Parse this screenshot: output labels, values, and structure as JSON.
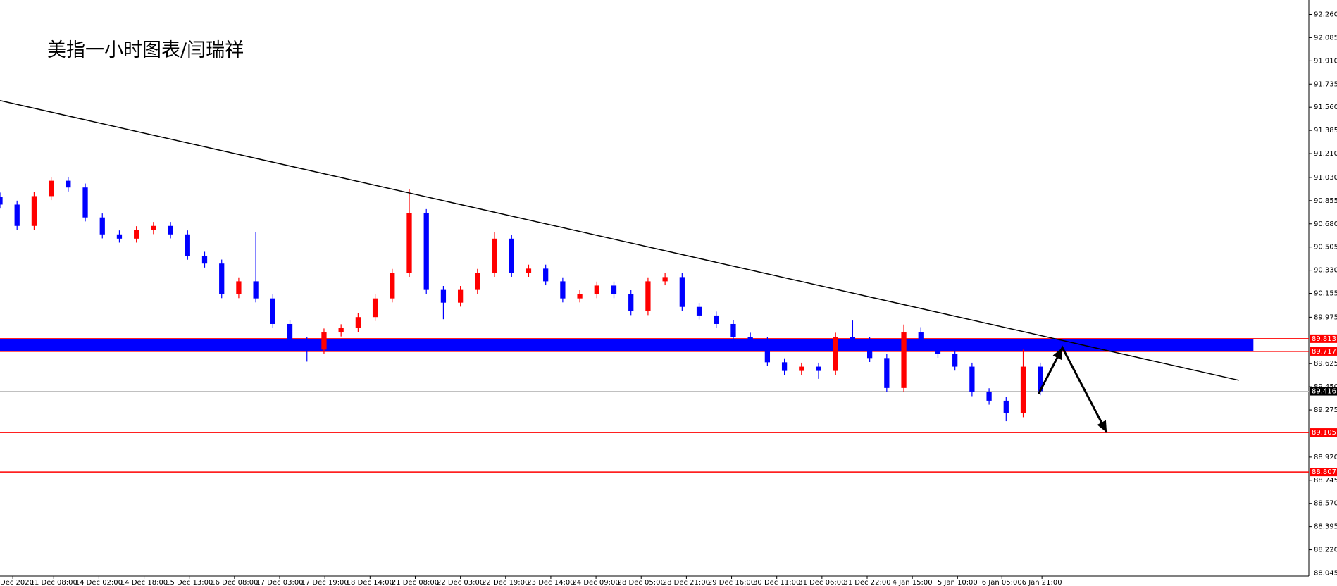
{
  "chart_data": {
    "type": "candlestick",
    "title": "美指一小时图表/闫瑞祥",
    "open": [
      90.886,
      90.825,
      90.664,
      90.889,
      91.005,
      90.954,
      90.728,
      90.6,
      90.568,
      90.632,
      90.664,
      90.6,
      90.439,
      90.38,
      90.149,
      90.246,
      90.117,
      89.924,
      89.795,
      89.731,
      89.86,
      89.892,
      89.976,
      90.117,
      90.31,
      90.761,
      90.181,
      90.085,
      90.181,
      90.31,
      90.568,
      90.31,
      90.342,
      90.246,
      90.117,
      90.149,
      90.214,
      90.149,
      90.021,
      90.246,
      90.278,
      90.053,
      89.988,
      89.924,
      89.828,
      89.795,
      89.635,
      89.57,
      89.602,
      89.57,
      89.828,
      89.795,
      89.667,
      89.441,
      89.86,
      89.763,
      89.699,
      89.602,
      89.409,
      89.345,
      89.25,
      89.602
    ],
    "high": [
      90.916,
      90.855,
      90.919,
      91.035,
      91.035,
      90.984,
      90.758,
      90.63,
      90.662,
      90.694,
      90.694,
      90.63,
      90.469,
      90.41,
      90.276,
      90.62,
      90.147,
      89.954,
      89.825,
      89.89,
      89.922,
      90.006,
      90.147,
      90.34,
      90.94,
      90.791,
      90.211,
      90.211,
      90.34,
      90.62,
      90.598,
      90.372,
      90.372,
      90.276,
      90.179,
      90.244,
      90.244,
      90.179,
      90.276,
      90.308,
      90.308,
      90.083,
      90.018,
      89.954,
      89.858,
      89.825,
      89.665,
      89.632,
      89.632,
      89.858,
      89.95,
      89.825,
      89.697,
      89.92,
      89.9,
      89.793,
      89.729,
      89.632,
      89.439,
      89.375,
      89.73,
      89.632
    ],
    "low": [
      90.795,
      90.634,
      90.634,
      90.859,
      90.924,
      90.698,
      90.57,
      90.538,
      90.538,
      90.602,
      90.57,
      90.409,
      90.35,
      90.119,
      90.119,
      90.087,
      89.894,
      89.765,
      89.64,
      89.701,
      89.83,
      89.862,
      89.946,
      90.087,
      90.28,
      90.151,
      89.96,
      90.055,
      90.151,
      90.28,
      90.28,
      90.28,
      90.216,
      90.087,
      90.087,
      90.119,
      90.119,
      89.991,
      89.991,
      90.216,
      90.023,
      89.958,
      89.894,
      89.798,
      89.765,
      89.605,
      89.54,
      89.54,
      89.51,
      89.54,
      89.765,
      89.637,
      89.411,
      89.411,
      89.733,
      89.669,
      89.572,
      89.379,
      89.315,
      89.19,
      89.22,
      89.386
    ],
    "close": [
      90.825,
      90.664,
      90.889,
      91.005,
      90.954,
      90.728,
      90.6,
      90.568,
      90.632,
      90.664,
      90.6,
      90.439,
      90.38,
      90.149,
      90.246,
      90.117,
      89.924,
      89.795,
      89.731,
      89.86,
      89.892,
      89.976,
      90.117,
      90.31,
      90.761,
      90.181,
      90.085,
      90.181,
      90.31,
      90.568,
      90.31,
      90.342,
      90.246,
      90.117,
      90.149,
      90.214,
      90.149,
      90.021,
      90.246,
      90.278,
      90.053,
      89.988,
      89.924,
      89.828,
      89.795,
      89.635,
      89.57,
      89.602,
      89.57,
      89.828,
      89.795,
      89.667,
      89.441,
      89.86,
      89.763,
      89.699,
      89.602,
      89.409,
      89.345,
      89.25,
      89.602,
      89.416
    ],
    "up_color": "#ff0000",
    "down_color": "#0000ff",
    "xlim": [
      0,
      76.75
    ],
    "xticks": [
      {
        "value": 0.75,
        "label": "Dec 2020"
      },
      {
        "value": 3.15,
        "label": "11 Dec 08:00"
      },
      {
        "value": 5.8,
        "label": "14 Dec 02:00"
      },
      {
        "value": 8.45,
        "label": "14 Dec 18:00"
      },
      {
        "value": 11.1,
        "label": "15 Dec 13:00"
      },
      {
        "value": 13.75,
        "label": "16 Dec 08:00"
      },
      {
        "value": 16.4,
        "label": "17 Dec 03:00"
      },
      {
        "value": 19.05,
        "label": "17 Dec 19:00"
      },
      {
        "value": 21.7,
        "label": "18 Dec 14:00"
      },
      {
        "value": 24.35,
        "label": "21 Dec 08:00"
      },
      {
        "value": 27.0,
        "label": "22 Dec 03:00"
      },
      {
        "value": 29.65,
        "label": "22 Dec 19:00"
      },
      {
        "value": 32.3,
        "label": "23 Dec 14:00"
      },
      {
        "value": 34.95,
        "label": "24 Dec 09:00"
      },
      {
        "value": 37.6,
        "label": "28 Dec 05:00"
      },
      {
        "value": 40.25,
        "label": "28 Dec 21:00"
      },
      {
        "value": 42.9,
        "label": "29 Dec 16:00"
      },
      {
        "value": 45.55,
        "label": "30 Dec 11:00"
      },
      {
        "value": 48.2,
        "label": "31 Dec 06:00"
      },
      {
        "value": 50.85,
        "label": "31 Dec 22:00"
      },
      {
        "value": 53.5,
        "label": "4 Jan 15:00"
      },
      {
        "value": 56.15,
        "label": "5 Jan 10:00"
      },
      {
        "value": 58.75,
        "label": "6 Jan 05:00"
      },
      {
        "value": 61.1,
        "label": "6 Jan 21:00"
      }
    ],
    "ylim": [
      88.021,
      92.369
    ],
    "yticks": [
      {
        "value": 92.26,
        "label": "92.260"
      },
      92.085,
      {
        "value": 91.91,
        "label": "91.910"
      },
      91.735,
      {
        "value": 91.56,
        "label": "91.560"
      },
      91.385,
      {
        "value": 91.21,
        "label": "91.210"
      },
      {
        "value": 91.03,
        "label": "91.030"
      },
      90.855,
      {
        "value": 90.68,
        "label": "90.680"
      },
      90.505,
      {
        "value": 90.33,
        "label": "90.330"
      },
      90.155,
      89.975,
      89.625,
      {
        "value": 89.45,
        "label": "89.450"
      },
      89.275,
      {
        "value": 88.92,
        "label": "88.920"
      },
      88.745,
      {
        "value": 88.57,
        "label": "88.570"
      },
      88.395,
      {
        "value": 88.22,
        "label": "88.220"
      },
      88.045
    ],
    "levels": [
      89.105,
      88.807
    ],
    "level_color": "#ff0000",
    "zone": {
      "from": 89.717,
      "to": 89.813,
      "x_end": 73.5,
      "color": "#0000ff"
    },
    "last_price": 89.416,
    "trendline": {
      "x": [
        0,
        72.65
      ],
      "y": [
        91.61,
        89.499
      ]
    },
    "arrow": {
      "x": [
        60.9,
        62.3,
        64.9
      ],
      "y": [
        89.396,
        89.745,
        89.105
      ]
    }
  }
}
